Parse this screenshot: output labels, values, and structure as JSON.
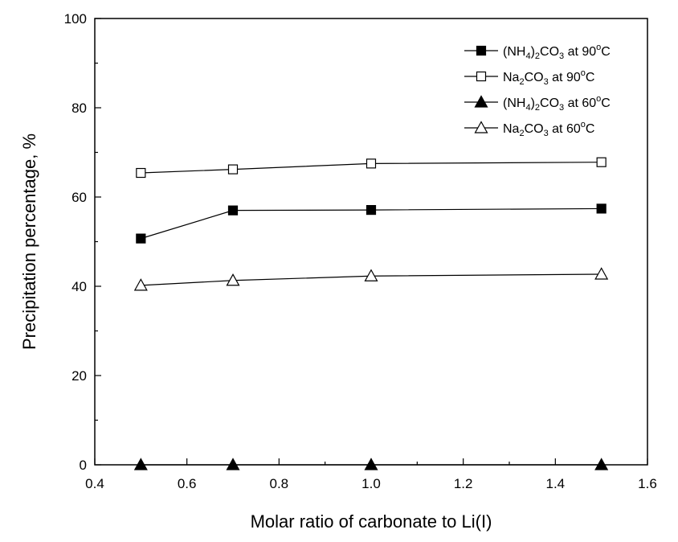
{
  "chart_data": {
    "type": "line",
    "title": "",
    "xlabel": "Molar ratio of carbonate to Li(I)",
    "ylabel": "Precipitation percentage, %",
    "xlim": [
      0.4,
      1.6
    ],
    "ylim": [
      0,
      100
    ],
    "x_ticks": [
      "0.4",
      "0.6",
      "0.8",
      "1.0",
      "1.2",
      "1.4",
      "1.6"
    ],
    "y_ticks": [
      "0",
      "20",
      "40",
      "60",
      "80",
      "100"
    ],
    "grid": false,
    "legend_position": "top-right",
    "x": [
      0.5,
      0.7,
      1.0,
      1.5
    ],
    "series": [
      {
        "name_parts": [
          "(NH",
          "4",
          ")",
          "2",
          "CO",
          "3",
          " at 90",
          "o",
          "C"
        ],
        "marker": "square-filled",
        "values": [
          50.7,
          57.0,
          57.1,
          57.4
        ]
      },
      {
        "name_parts": [
          "Na",
          "2",
          "CO",
          "3",
          " at 90",
          "o",
          "C"
        ],
        "marker": "square-open",
        "values": [
          65.4,
          66.2,
          67.5,
          67.8
        ]
      },
      {
        "name_parts": [
          "(NH",
          "4",
          ")",
          "2",
          "CO",
          "3",
          " at 60",
          "o",
          "C"
        ],
        "marker": "triangle-filled",
        "values": [
          0.0,
          0.0,
          0.0,
          0.0
        ]
      },
      {
        "name_parts": [
          "Na",
          "2",
          "CO",
          "3",
          " at 60",
          "o",
          "C"
        ],
        "marker": "triangle-open",
        "values": [
          40.2,
          41.3,
          42.3,
          42.7
        ]
      }
    ]
  }
}
